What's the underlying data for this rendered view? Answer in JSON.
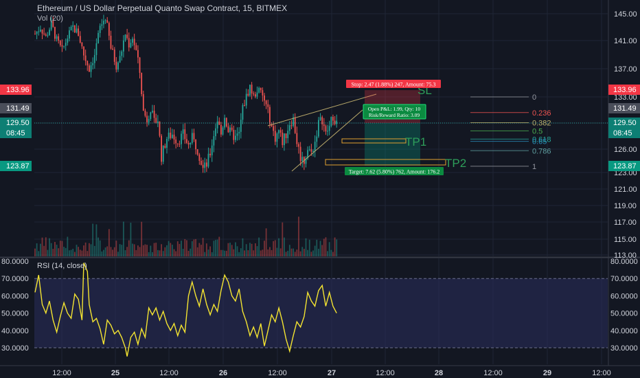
{
  "header": {
    "title": "Ethereum / US Dollar Perpetual Quanto Swap Contract, 15, BITMEX",
    "volume_label": "Vol (20)",
    "rsi_label": "RSI (14, close)"
  },
  "colors": {
    "background": "#131722",
    "grid": "#1f2535",
    "up": "#26a69a",
    "down": "#ef5350",
    "rsi_line": "#f5e531",
    "rsi_band": "#2a2d5c",
    "stop_red": "#f23645",
    "target_green": "#089981",
    "axis_text": "#d1d4dc"
  },
  "chart_data": {
    "type": "candlestick",
    "symbol": "ETHUSD",
    "exchange": "BITMEX",
    "timeframe_minutes": 15,
    "price_axis": {
      "ticks": [
        "145.00",
        "141.00",
        "137.00",
        "133.00",
        "129.50",
        "126.00",
        "123.00",
        "121.00",
        "119.00",
        "117.00",
        "115.00",
        "113.00"
      ],
      "ylim": [
        112.8,
        146.5
      ]
    },
    "time_axis": {
      "ticks": [
        "12:00",
        "25",
        "12:00",
        "26",
        "12:00",
        "27",
        "12:00",
        "28",
        "12:00",
        "29",
        "12:00"
      ]
    },
    "price_labels": [
      {
        "text": "133.96",
        "kind": "stop"
      },
      {
        "text": "131.49",
        "kind": "grey"
      },
      {
        "text": "129.50",
        "kind": "last"
      },
      {
        "text": "08:45",
        "kind": "last"
      },
      {
        "text": "123.87",
        "kind": "target"
      }
    ],
    "price_path": [
      [
        0,
        142.0
      ],
      [
        3,
        143.0
      ],
      [
        6,
        141.5
      ],
      [
        9,
        143.5
      ],
      [
        12,
        141.0
      ],
      [
        15,
        139.5
      ],
      [
        18,
        141.5
      ],
      [
        21,
        143.0
      ],
      [
        24,
        142.0
      ],
      [
        27,
        139.0
      ],
      [
        30,
        137.0
      ],
      [
        33,
        139.0
      ],
      [
        36,
        143.0
      ],
      [
        39,
        144.5
      ],
      [
        42,
        140.0
      ],
      [
        45,
        137.5
      ],
      [
        47,
        138.5
      ],
      [
        50,
        142.0
      ],
      [
        52,
        140.5
      ],
      [
        54,
        141.5
      ],
      [
        56,
        139.5
      ],
      [
        58,
        136.5
      ],
      [
        60,
        131.0
      ],
      [
        62,
        130.0
      ],
      [
        64,
        131.5
      ],
      [
        66,
        129.5
      ],
      [
        68,
        130.0
      ],
      [
        70,
        125.0
      ],
      [
        73,
        127.5
      ],
      [
        76,
        128.0
      ],
      [
        79,
        127.0
      ],
      [
        82,
        128.0
      ],
      [
        85,
        126.5
      ],
      [
        87,
        127.5
      ],
      [
        90,
        126.0
      ],
      [
        93,
        123.5
      ],
      [
        95,
        124.0
      ],
      [
        97,
        125.5
      ],
      [
        99,
        128.0
      ],
      [
        101,
        130.0
      ],
      [
        103,
        128.0
      ],
      [
        105,
        130.5
      ],
      [
        107,
        128.5
      ],
      [
        109,
        128.0
      ],
      [
        111,
        127.5
      ],
      [
        113,
        128.0
      ],
      [
        115,
        131.5
      ],
      [
        117,
        133.0
      ],
      [
        119,
        134.5
      ],
      [
        121,
        133.0
      ],
      [
        123,
        134.0
      ],
      [
        125,
        133.5
      ],
      [
        127,
        132.5
      ],
      [
        129,
        131.0
      ],
      [
        131,
        129.0
      ],
      [
        133,
        127.5
      ],
      [
        135,
        128.5
      ],
      [
        137,
        127.0
      ],
      [
        139,
        128.0
      ],
      [
        141,
        129.5
      ],
      [
        143,
        130.0
      ],
      [
        145,
        127.0
      ],
      [
        147,
        125.0
      ],
      [
        149,
        124.5
      ],
      [
        151,
        126.0
      ],
      [
        153,
        125.5
      ],
      [
        155,
        127.0
      ],
      [
        157,
        129.5
      ],
      [
        159,
        130.0
      ],
      [
        161,
        128.0
      ],
      [
        163,
        129.0
      ],
      [
        165,
        130.5
      ],
      [
        166,
        130.0
      ],
      [
        167,
        129.5
      ]
    ],
    "volume_overlay": {
      "note": "volume bars shown at bottom of price pane, scaled visually"
    },
    "rsi": {
      "ticks": [
        "80.0000",
        "70.0000",
        "60.0000",
        "50.0000",
        "40.0000",
        "30.0000"
      ],
      "ylim": [
        22,
        80
      ],
      "band": [
        30,
        70
      ],
      "values": [
        [
          0,
          62
        ],
        [
          2,
          72
        ],
        [
          4,
          55
        ],
        [
          6,
          50
        ],
        [
          8,
          57
        ],
        [
          10,
          46
        ],
        [
          12,
          39
        ],
        [
          14,
          48
        ],
        [
          16,
          56
        ],
        [
          18,
          50
        ],
        [
          20,
          47
        ],
        [
          22,
          61
        ],
        [
          24,
          58
        ],
        [
          26,
          46
        ],
        [
          27,
          79
        ],
        [
          29,
          74
        ],
        [
          30,
          55
        ],
        [
          32,
          45
        ],
        [
          34,
          47
        ],
        [
          36,
          41
        ],
        [
          38,
          32
        ],
        [
          40,
          46
        ],
        [
          42,
          43
        ],
        [
          44,
          38
        ],
        [
          46,
          40
        ],
        [
          48,
          36
        ],
        [
          50,
          30
        ],
        [
          51,
          25
        ],
        [
          53,
          36
        ],
        [
          55,
          39
        ],
        [
          57,
          32
        ],
        [
          59,
          41
        ],
        [
          61,
          36
        ],
        [
          63,
          53
        ],
        [
          65,
          49
        ],
        [
          67,
          53
        ],
        [
          69,
          46
        ],
        [
          71,
          51
        ],
        [
          73,
          44
        ],
        [
          75,
          40
        ],
        [
          77,
          44
        ],
        [
          79,
          37
        ],
        [
          81,
          43
        ],
        [
          83,
          39
        ],
        [
          85,
          60
        ],
        [
          87,
          68
        ],
        [
          89,
          60
        ],
        [
          91,
          54
        ],
        [
          93,
          64
        ],
        [
          95,
          55
        ],
        [
          97,
          49
        ],
        [
          99,
          55
        ],
        [
          101,
          51
        ],
        [
          103,
          63
        ],
        [
          105,
          72
        ],
        [
          107,
          68
        ],
        [
          109,
          60
        ],
        [
          111,
          57
        ],
        [
          113,
          64
        ],
        [
          115,
          51
        ],
        [
          117,
          45
        ],
        [
          119,
          37
        ],
        [
          121,
          42
        ],
        [
          123,
          36
        ],
        [
          125,
          44
        ],
        [
          127,
          31
        ],
        [
          129,
          40
        ],
        [
          131,
          49
        ],
        [
          133,
          45
        ],
        [
          135,
          53
        ],
        [
          137,
          45
        ],
        [
          139,
          35
        ],
        [
          141,
          28
        ],
        [
          143,
          37
        ],
        [
          145,
          45
        ],
        [
          147,
          42
        ],
        [
          149,
          48
        ],
        [
          151,
          62
        ],
        [
          153,
          57
        ],
        [
          155,
          54
        ],
        [
          157,
          63
        ],
        [
          159,
          66
        ],
        [
          161,
          54
        ],
        [
          163,
          62
        ],
        [
          165,
          54
        ],
        [
          167,
          50
        ]
      ]
    },
    "annotations": {
      "stop_box": {
        "text": "Stop: 2.47 (1.88%) 247, Amount: 75.3",
        "price": 133.96
      },
      "pnl_box": {
        "text1": "Open P&L: 1.99, Qty: 10",
        "text2": "Risk/Reward Ratio: 3.09"
      },
      "target_box": {
        "text": "Target: 7.62 (5.80%) 762, Amount: 176.2",
        "price": 123.87
      },
      "labels": [
        "SL",
        "TP1",
        "TP2"
      ],
      "fib": [
        {
          "label": "0",
          "price": 133.0,
          "color": "#9598a1"
        },
        {
          "label": "0.236",
          "price": 130.9,
          "color": "#ef5350"
        },
        {
          "label": "0.382",
          "price": 129.55,
          "color": "#b8b06e"
        },
        {
          "label": "0.5",
          "price": 128.45,
          "color": "#4caf50"
        },
        {
          "label": "0.618",
          "price": 127.35,
          "color": "#26a69a"
        },
        {
          "label": "0.65",
          "price": 127.05,
          "color": "#2a8fbd"
        },
        {
          "label": "0.786",
          "price": 125.8,
          "color": "#5f9ea0"
        },
        {
          "label": "1",
          "price": 123.8,
          "color": "#9598a1"
        }
      ]
    }
  }
}
